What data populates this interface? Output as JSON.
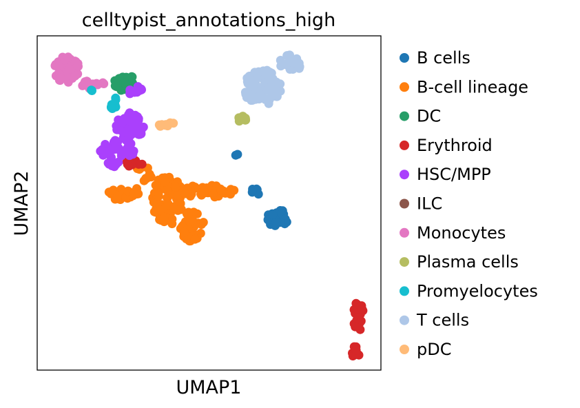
{
  "chart_data": {
    "type": "scatter",
    "title": "celltypist_annotations_high",
    "xlabel": "UMAP1",
    "ylabel": "UMAP2",
    "xlim": [
      0,
      100
    ],
    "ylim": [
      0,
      100
    ],
    "xticks": false,
    "yticks": false,
    "grid": false,
    "legend_position": "right",
    "series": [
      {
        "name": "B cells",
        "color": "#1f77b4",
        "clusters": [
          {
            "cx": 70.0,
            "cy": 45.5,
            "rx": 3.2,
            "ry": 2.6,
            "n": 28
          },
          {
            "cx": 64.0,
            "cy": 53.5,
            "rx": 1.6,
            "ry": 1.3,
            "n": 8
          },
          {
            "cx": 58.0,
            "cy": 64.5,
            "rx": 0.4,
            "ry": 0.4,
            "n": 2
          }
        ]
      },
      {
        "name": "B-cell lineage",
        "color": "#ff7f0e",
        "clusters": [
          {
            "cx": 38.0,
            "cy": 51.0,
            "rx": 4.5,
            "ry": 7.5,
            "n": 70
          },
          {
            "cx": 45.0,
            "cy": 43.0,
            "rx": 3.5,
            "ry": 4.5,
            "n": 40
          },
          {
            "cx": 25.0,
            "cy": 53.0,
            "rx": 5.0,
            "ry": 2.2,
            "n": 22
          },
          {
            "cx": 50.0,
            "cy": 53.5,
            "rx": 8.0,
            "ry": 2.0,
            "n": 40
          },
          {
            "cx": 31.0,
            "cy": 59.0,
            "rx": 2.5,
            "ry": 2.5,
            "n": 10
          }
        ]
      },
      {
        "name": "DC",
        "color": "#279e68",
        "clusters": [
          {
            "cx": 25.5,
            "cy": 86.0,
            "rx": 3.5,
            "ry": 2.5,
            "n": 30
          }
        ]
      },
      {
        "name": "Erythroid",
        "color": "#d62728",
        "clusters": [
          {
            "cx": 93.5,
            "cy": 16.0,
            "rx": 1.6,
            "ry": 4.5,
            "n": 20
          },
          {
            "cx": 92.5,
            "cy": 5.5,
            "rx": 1.4,
            "ry": 1.6,
            "n": 10
          },
          {
            "cx": 28.0,
            "cy": 62.0,
            "rx": 3.2,
            "ry": 1.2,
            "n": 10
          }
        ]
      },
      {
        "name": "HSC/MPP",
        "color": "#aa40fc",
        "clusters": [
          {
            "cx": 27.0,
            "cy": 73.0,
            "rx": 4.0,
            "ry": 4.5,
            "n": 50
          },
          {
            "cx": 23.5,
            "cy": 66.0,
            "rx": 5.5,
            "ry": 3.0,
            "n": 30
          },
          {
            "cx": 28.5,
            "cy": 83.5,
            "rx": 2.0,
            "ry": 1.8,
            "n": 10
          },
          {
            "cx": 22.5,
            "cy": 62.0,
            "rx": 2.0,
            "ry": 1.2,
            "n": 8
          }
        ]
      },
      {
        "name": "ILC",
        "color": "#8c564b",
        "clusters": []
      },
      {
        "name": "Monocytes",
        "color": "#e377c2",
        "clusters": [
          {
            "cx": 8.5,
            "cy": 90.0,
            "rx": 4.0,
            "ry": 4.0,
            "n": 60
          },
          {
            "cx": 16.0,
            "cy": 86.0,
            "rx": 3.5,
            "ry": 1.8,
            "n": 14
          }
        ]
      },
      {
        "name": "Plasma cells",
        "color": "#b5bd61",
        "clusters": [
          {
            "cx": 59.5,
            "cy": 75.0,
            "rx": 1.3,
            "ry": 1.0,
            "n": 8
          }
        ]
      },
      {
        "name": "Promyelocytes",
        "color": "#17becf",
        "clusters": [
          {
            "cx": 22.5,
            "cy": 79.0,
            "rx": 1.2,
            "ry": 2.5,
            "n": 8
          },
          {
            "cx": 16.0,
            "cy": 84.0,
            "rx": 0.5,
            "ry": 0.5,
            "n": 2
          }
        ]
      },
      {
        "name": "T cells",
        "color": "#aec7e8",
        "clusters": [
          {
            "cx": 65.5,
            "cy": 84.5,
            "rx": 5.5,
            "ry": 5.5,
            "n": 90
          },
          {
            "cx": 73.5,
            "cy": 91.5,
            "rx": 3.5,
            "ry": 2.8,
            "n": 20
          }
        ]
      },
      {
        "name": "pDC",
        "color": "#ffbb78",
        "clusters": [
          {
            "cx": 37.5,
            "cy": 73.5,
            "rx": 2.5,
            "ry": 0.8,
            "n": 9
          }
        ]
      }
    ]
  }
}
